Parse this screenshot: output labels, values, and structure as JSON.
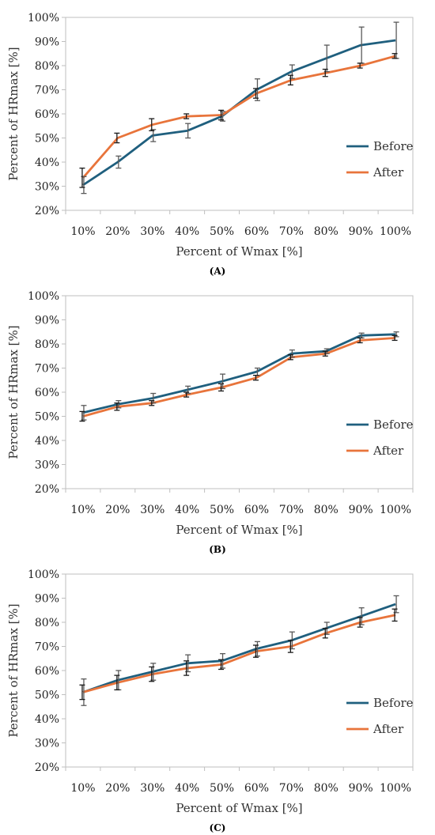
{
  "chart_data": [
    {
      "type": "line",
      "panel_label": "(A)",
      "xlabel": "Percent of Wmax [%]",
      "ylabel": "Percent of HRmax [%]",
      "categories": [
        "10%",
        "20%",
        "30%",
        "40%",
        "50%",
        "60%",
        "70%",
        "80%",
        "90%",
        "100%"
      ],
      "ylim": [
        20,
        100
      ],
      "y_ticks": [
        "20%",
        "30%",
        "40%",
        "50%",
        "60%",
        "70%",
        "80%",
        "90%",
        "100%"
      ],
      "legend": "right",
      "series": [
        {
          "name": "Before",
          "color": "#1f5f7e",
          "values": [
            30.5,
            40,
            51,
            53,
            59,
            70,
            77.5,
            83,
            88.5,
            90.5
          ],
          "errors": [
            3.5,
            2.5,
            2.5,
            3,
            2,
            4.5,
            2.8,
            5.5,
            7.5,
            7.5
          ]
        },
        {
          "name": "After",
          "color": "#e8743b",
          "values": [
            33.5,
            50,
            55.5,
            59,
            59.5,
            68.5,
            74,
            77,
            80,
            84
          ],
          "errors": [
            4,
            2,
            2.5,
            1,
            2,
            2,
            2,
            1.5,
            1,
            1
          ]
        }
      ]
    },
    {
      "type": "line",
      "panel_label": "(B)",
      "xlabel": "Percent of Wmax [%]",
      "ylabel": "Percent of HRmax [%]",
      "categories": [
        "10%",
        "20%",
        "30%",
        "40%",
        "50%",
        "60%",
        "70%",
        "80%",
        "90%",
        "100%"
      ],
      "ylim": [
        20,
        100
      ],
      "y_ticks": [
        "20%",
        "30%",
        "40%",
        "50%",
        "60%",
        "70%",
        "80%",
        "90%",
        "100%"
      ],
      "legend": "right",
      "series": [
        {
          "name": "Before",
          "color": "#1f5f7e",
          "values": [
            51.5,
            55,
            57.5,
            61,
            64.5,
            68.5,
            76,
            77,
            83.5,
            84
          ],
          "errors": [
            3,
            1.5,
            2,
            1.5,
            3,
            1.5,
            1.5,
            1,
            1,
            1
          ]
        },
        {
          "name": "After",
          "color": "#e8743b",
          "values": [
            50,
            54,
            55.5,
            59,
            62,
            66,
            74.5,
            76,
            81.5,
            82.5
          ],
          "errors": [
            2,
            1.5,
            1,
            1,
            1.5,
            1,
            1,
            1,
            1,
            1
          ]
        }
      ]
    },
    {
      "type": "line",
      "panel_label": "(C)",
      "xlabel": "Percent of Wmax [%]",
      "ylabel": "Percent of HRmax [%]",
      "categories": [
        "10%",
        "20%",
        "30%",
        "40%",
        "50%",
        "60%",
        "70%",
        "80%",
        "90%",
        "100%"
      ],
      "ylim": [
        20,
        100
      ],
      "y_ticks": [
        "20%",
        "30%",
        "40%",
        "50%",
        "60%",
        "70%",
        "80%",
        "90%",
        "100%"
      ],
      "legend": "right",
      "series": [
        {
          "name": "Before",
          "color": "#1f5f7e",
          "values": [
            51,
            56,
            59.5,
            63,
            64,
            69,
            72.5,
            77.5,
            82.5,
            87.5
          ],
          "errors": [
            5.5,
            4,
            3.5,
            3.5,
            3,
            3,
            3.5,
            2.5,
            3.5,
            3.5
          ]
        },
        {
          "name": "After",
          "color": "#e8743b",
          "values": [
            51,
            55,
            58.5,
            61,
            62.5,
            68,
            70,
            75.5,
            80,
            83
          ],
          "errors": [
            3,
            3,
            3,
            3,
            2,
            2.5,
            2.5,
            2,
            2,
            2.5
          ]
        }
      ]
    }
  ]
}
